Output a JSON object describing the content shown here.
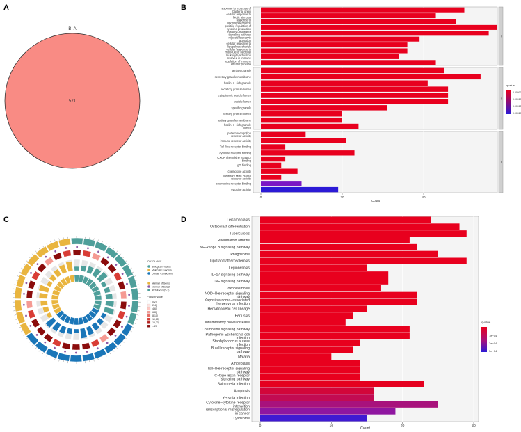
{
  "panels": {
    "a": "A",
    "b": "B",
    "c": "C",
    "d": "D"
  },
  "venn": {
    "title": "B–A",
    "count": "571",
    "fill": "#f98b84"
  },
  "chart_data": [
    {
      "id": "B",
      "type": "bar",
      "orientation": "horizontal",
      "xlabel": "Count",
      "xlim": [
        0,
        60
      ],
      "xticks": [
        0,
        20,
        40
      ],
      "legend": {
        "title": "qvalue",
        "labels": [
          "0.00000",
          "0.00010",
          "0.00015",
          "0.00020"
        ],
        "low_color": "#e8001e",
        "high_color": "#2b1ad6"
      },
      "facets": [
        {
          "name": "BP",
          "categories": [
            "response to molecule of bacterial origin",
            "cellular response to biotic stimulus",
            "response to lipopolysaccharide",
            "positive regulation of cytokine production",
            "cytokine−mediated signaling pathway",
            "myeloid leukocyte activation",
            "cellular response to lipopolysaccharide",
            "cellular response to molecule of bacterial origin",
            "leukocyte activation involved in immune response",
            "regulation of immune effector process"
          ],
          "values": [
            50,
            43,
            48,
            58,
            56,
            39,
            36,
            36,
            34,
            43
          ],
          "colors": [
            "#e8001e",
            "#e8001e",
            "#e8001e",
            "#e8001e",
            "#e8001e",
            "#e8001e",
            "#e8001e",
            "#e8001e",
            "#e8001e",
            "#e8001e"
          ]
        },
        {
          "name": "CC",
          "categories": [
            "tertiary granule",
            "secretory granule membrane",
            "ficolin−1−rich granule",
            "secretory granule lumen",
            "cytoplasmic vesicle lumen",
            "vesicle lumen",
            "specific granule",
            "tertiary granule lumen",
            "tertiary granule membrane",
            "ficolin−1−rich granule lumen"
          ],
          "values": [
            45,
            54,
            41,
            46,
            46,
            46,
            31,
            20,
            20,
            24
          ],
          "colors": [
            "#e8001e",
            "#e8001e",
            "#e8001e",
            "#e8001e",
            "#e8001e",
            "#e8001e",
            "#e8001e",
            "#e8001e",
            "#e8001e",
            "#e8001e"
          ]
        },
        {
          "name": "MF",
          "categories": [
            "pattern recognition receptor activity",
            "immune receptor activity",
            "Toll−like receptor binding",
            "cytokine receptor binding",
            "CXCR chemokine receptor binding",
            "IgG binding",
            "chemokine activity",
            "inhibitory MHC class I receptor activity",
            "chemokine receptor binding",
            "cytokine activity"
          ],
          "values": [
            11,
            21,
            6,
            23,
            6,
            5,
            9,
            5,
            10,
            19
          ],
          "colors": [
            "#e8001e",
            "#e8001e",
            "#e8001e",
            "#e8001e",
            "#e8001e",
            "#e8001e",
            "#e8001e",
            "#e8001e",
            "#7a17c4",
            "#2b1ad6"
          ]
        }
      ]
    },
    {
      "id": "D",
      "type": "bar",
      "orientation": "horizontal",
      "xlabel": "Count",
      "xlim": [
        0,
        30
      ],
      "xticks": [
        0,
        10,
        20,
        30
      ],
      "legend": {
        "title": "qvalue",
        "labels": [
          "1e−04",
          "2e−04",
          "3e−04"
        ]
      },
      "categories": [
        "Leishmaniasis",
        "Osteoclast differentiation",
        "Tuberculosis",
        "Rheumatoid arthritis",
        "NF−kappa B signaling pathway",
        "Phagosome",
        "Lipid and atherosclerosis",
        "Legionellosis",
        "IL−17 signaling pathway",
        "TNF signaling pathway",
        "Toxoplasmosis",
        "NOD−like receptor signaling pathway",
        "Kaposi sarcoma−associated herpesvirus infection",
        "Hematopoietic cell lineage",
        "Pertussis",
        "Inflammatory bowel disease",
        "Chemokine signaling pathway",
        "Pathogenic Escherichia coli infection",
        "Staphylococcus aureus infection",
        "B cell receptor signaling pathway",
        "Malaria",
        "Amoebiasis",
        "Toll−like receptor signaling pathway",
        "C−type lectin receptor signaling pathway",
        "Salmonella infection",
        "Apoptosis",
        "Yersinia infection",
        "Cytokine−cytokine receptor interaction",
        "Transcriptional misregulation in cancer",
        "Lysosome"
      ],
      "values": [
        24,
        28,
        29,
        21,
        22,
        25,
        29,
        15,
        18,
        18,
        17,
        22,
        22,
        15,
        13,
        12,
        21,
        21,
        14,
        13,
        10,
        14,
        14,
        14,
        23,
        16,
        16,
        25,
        19,
        15
      ],
      "colors": [
        "#e8001e",
        "#e8001e",
        "#e8001e",
        "#e8001e",
        "#e8001e",
        "#e8001e",
        "#e8001e",
        "#e8001e",
        "#e8001e",
        "#e8001e",
        "#e8001e",
        "#e8001e",
        "#e8001e",
        "#e8001e",
        "#e8001e",
        "#e8001e",
        "#e8001e",
        "#e8001e",
        "#e8001e",
        "#e8001e",
        "#e8001e",
        "#e8001e",
        "#e8001e",
        "#e8001e",
        "#e5001f",
        "#d2063a",
        "#c20b52",
        "#a8127c",
        "#8f16a0",
        "#3f1ad2"
      ]
    }
  ],
  "circos": {
    "legend_title": "ONTOLOGY",
    "ontology": [
      {
        "label": "Biological Process",
        "color": "#4e9f9a"
      },
      {
        "label": "Molecular Function",
        "color": "#e9b53f"
      },
      {
        "label": "Cellular Component",
        "color": "#1a76b8"
      }
    ],
    "count_title": "Number of Genes",
    "count_labels": [
      "Number of Genes",
      "Number of Select",
      "Rich Factor(0~1)"
    ],
    "pval_title": "−log10(Pvalue)",
    "pval_labels": [
      "[0,2]",
      "(2,4]",
      "(4,6]",
      "(6,8]",
      "(8,10]",
      "(10,15]",
      "(15,20]",
      ">=20"
    ],
    "pval_colors": [
      "#ffffff",
      "#ffe2df",
      "#ffc7c2",
      "#f59a93",
      "#e96b63",
      "#d93d36",
      "#b81c1a",
      "#8b0c0c"
    ]
  }
}
